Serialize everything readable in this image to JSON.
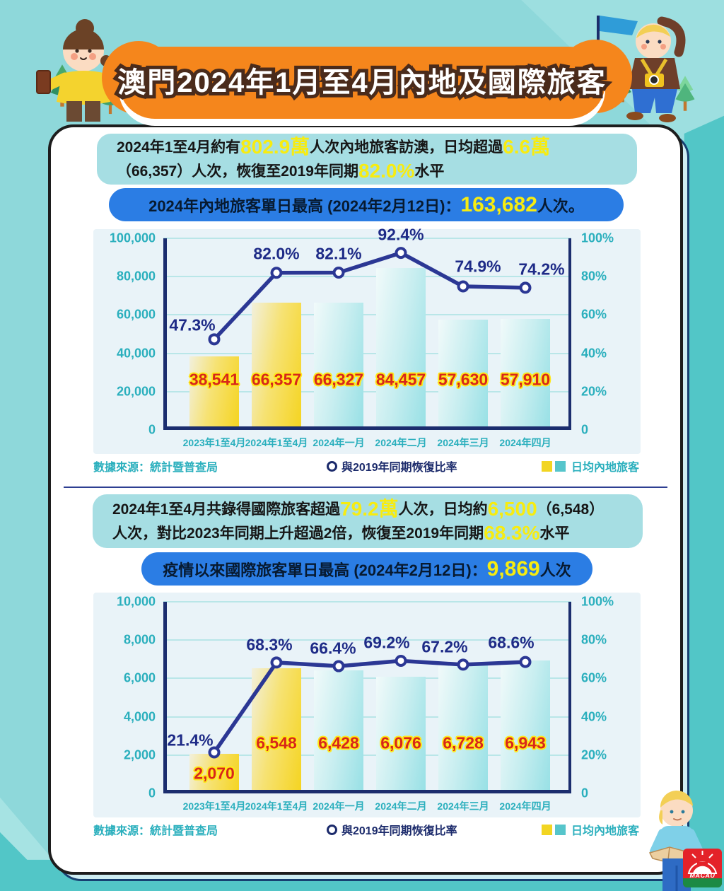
{
  "banner": {
    "title": "澳門2024年1月至4月內地及國際旅客"
  },
  "logo": {
    "text": "MACAU"
  },
  "sections": [
    {
      "summary_lines": [
        [
          {
            "t": "2024年1至4月約有"
          },
          {
            "t": "802.9萬",
            "hl": true
          },
          {
            "t": "人次內地旅客訪澳，日均超過"
          },
          {
            "t": "6.6萬",
            "hl": true
          }
        ],
        [
          {
            "t": "（66,357）人次，恢復至2019年同期"
          },
          {
            "t": "82.0%",
            "hl": true
          },
          {
            "t": "水平"
          }
        ]
      ],
      "pill": [
        {
          "t": "2024年內地旅客單日最高 (2024年2月12日)："
        },
        {
          "t": "163,682",
          "hl": true
        },
        {
          "t": "人次。"
        }
      ],
      "footer": {
        "source": "數據來源：統計暨普查局",
        "legend_line": "與2019年同期恢復比率",
        "legend_bar": "日均內地旅客"
      }
    },
    {
      "summary_lines": [
        [
          {
            "t": "2024年1至4月共錄得國際旅客超過"
          },
          {
            "t": "79.2萬",
            "hl": true
          },
          {
            "t": "人次，日均約"
          },
          {
            "t": "6,500",
            "hl": true
          },
          {
            "t": "（6,548）"
          }
        ],
        [
          {
            "t": "人次，對比2023年同期上升超過2倍，恢復至2019年同期"
          },
          {
            "t": "68.3%",
            "hl": true
          },
          {
            "t": "水平"
          }
        ]
      ],
      "pill": [
        {
          "t": "疫情以來國際旅客單日最高 (2024年2月12日)："
        },
        {
          "t": "9,869",
          "hl": true
        },
        {
          "t": "人次"
        }
      ],
      "footer": {
        "source": "數據來源：統計暨普查局",
        "legend_line": "與2019年同期恢復比率",
        "legend_bar": "日均內地旅客"
      }
    }
  ],
  "chart_data": [
    {
      "type": "bar",
      "title": "2024年內地旅客單日最高 (2024年2月12日)：163,682人次。",
      "categories": [
        "2023年1至4月",
        "2024年1至4月",
        "2024年一月",
        "2024年二月",
        "2024年三月",
        "2024年四月"
      ],
      "series": [
        {
          "name": "日均內地旅客",
          "type": "bar",
          "values": [
            38541,
            66357,
            66327,
            84457,
            57630,
            57910
          ]
        },
        {
          "name": "與2019年同期恢復比率",
          "type": "line",
          "unit": "%",
          "values": [
            47.3,
            82.0,
            82.1,
            92.4,
            74.9,
            74.2
          ]
        }
      ],
      "bar_labels": [
        "38,541",
        "66,357",
        "66,327",
        "84,457",
        "57,630",
        "57,910"
      ],
      "line_labels": [
        "47.3%",
        "82.0%",
        "82.1%",
        "92.4%",
        "74.9%",
        "74.2%"
      ],
      "ylim_left": [
        0,
        100000
      ],
      "ylim_right": [
        0,
        100
      ],
      "yticks_left": [
        "100,000",
        "80,000",
        "60,000",
        "40,000",
        "20,000",
        "0"
      ],
      "yticks_right": [
        "100%",
        "80%",
        "60%",
        "40%",
        "20%",
        "0"
      ],
      "bar_color_classes": [
        "yellow",
        "yellow",
        "cyan",
        "cyan",
        "cyan",
        "cyan"
      ],
      "grid": true,
      "legend_position": "bottom"
    },
    {
      "type": "bar",
      "title": "疫情以來國際旅客單日最高 (2024年2月12日)：9,869人次",
      "categories": [
        "2023年1至4月",
        "2024年1至4月",
        "2024年一月",
        "2024年二月",
        "2024年三月",
        "2024年四月"
      ],
      "series": [
        {
          "name": "日均內地旅客",
          "type": "bar",
          "values": [
            2070,
            6548,
            6428,
            6076,
            6728,
            6943
          ]
        },
        {
          "name": "與2019年同期恢復比率",
          "type": "line",
          "unit": "%",
          "values": [
            21.4,
            68.3,
            66.4,
            69.2,
            67.2,
            68.6
          ]
        }
      ],
      "bar_labels": [
        "2,070",
        "6,548",
        "6,428",
        "6,076",
        "6,728",
        "6,943"
      ],
      "line_labels": [
        "21.4%",
        "68.3%",
        "66.4%",
        "69.2%",
        "67.2%",
        "68.6%"
      ],
      "ylim_left": [
        0,
        10000
      ],
      "ylim_right": [
        0,
        100
      ],
      "yticks_left": [
        "10,000",
        "8,000",
        "6,000",
        "4,000",
        "2,000",
        "0"
      ],
      "yticks_right": [
        "100%",
        "80%",
        "60%",
        "40%",
        "20%",
        "0"
      ],
      "bar_color_classes": [
        "yellow",
        "yellow",
        "cyan",
        "cyan",
        "cyan",
        "cyan"
      ],
      "grid": true,
      "legend_position": "bottom"
    }
  ],
  "colors": {
    "background": "#8ed8da",
    "background_dark": "#52c6c7",
    "banner_orange": "#f5861c",
    "info_box": "#a6dee3",
    "highlight_yellow": "#f7ec10",
    "pill_blue": "#2b7de4",
    "bar_yellow": "#f5d420",
    "bar_cyan": "#97e0e5",
    "line_navy": "#2b3794",
    "value_red": "#d7271b",
    "axis_teal": "#2aafbd"
  }
}
